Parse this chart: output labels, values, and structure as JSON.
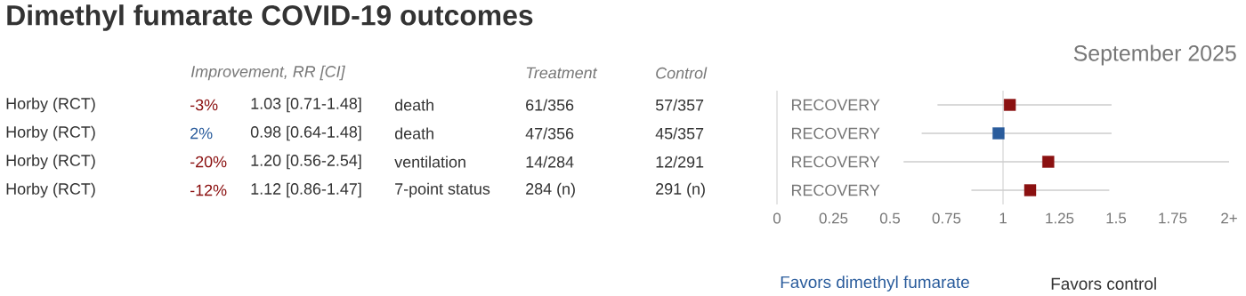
{
  "chart_data": {
    "type": "scatter",
    "title": "Dimethyl fumarate COVID-19 outcomes",
    "subtitle": "September 2025",
    "orientation": "horizontal",
    "marker": "square",
    "categories": [
      "RECOVERY",
      "RECOVERY",
      "RECOVERY",
      "RECOVERY"
    ],
    "values": [
      1.03,
      0.98,
      1.2,
      1.12
    ],
    "errors": [
      [
        0.71,
        1.48
      ],
      [
        0.64,
        1.48
      ],
      [
        0.56,
        2.54
      ],
      [
        0.86,
        1.47
      ]
    ],
    "value_labels": [
      "1.03 [0.71-1.48]",
      "0.98 [0.64-1.48]",
      "1.20 [0.56-2.54]",
      "1.12 [0.86-1.47]"
    ],
    "colors": [
      "#8b1111",
      "#2a5c9c",
      "#8b1111",
      "#8b1111"
    ],
    "xlim": [
      0,
      2
    ],
    "xticks": [
      0,
      0.25,
      0.5,
      0.75,
      1,
      1.25,
      1.5,
      1.75,
      {
        "value": 2,
        "label": "2+"
      }
    ],
    "ref_lines": [
      {
        "axis": "x",
        "value": 1,
        "color": "#cccccc"
      }
    ],
    "annotations": [
      "Improvement, RR [CI]",
      "Treatment",
      "Control",
      "Horby (RCT)",
      "-3%",
      "death",
      "61/356",
      "57/357",
      "Horby (RCT)",
      "2%",
      "death",
      "47/356",
      "45/357",
      "Horby (RCT)",
      "-20%",
      "ventilation",
      "14/284",
      "12/291",
      "Horby (RCT)",
      "-12%",
      "7-point status",
      "284 (n)",
      "291 (n)",
      "Favors dimethyl fumarate",
      "Favors control"
    ]
  }
}
